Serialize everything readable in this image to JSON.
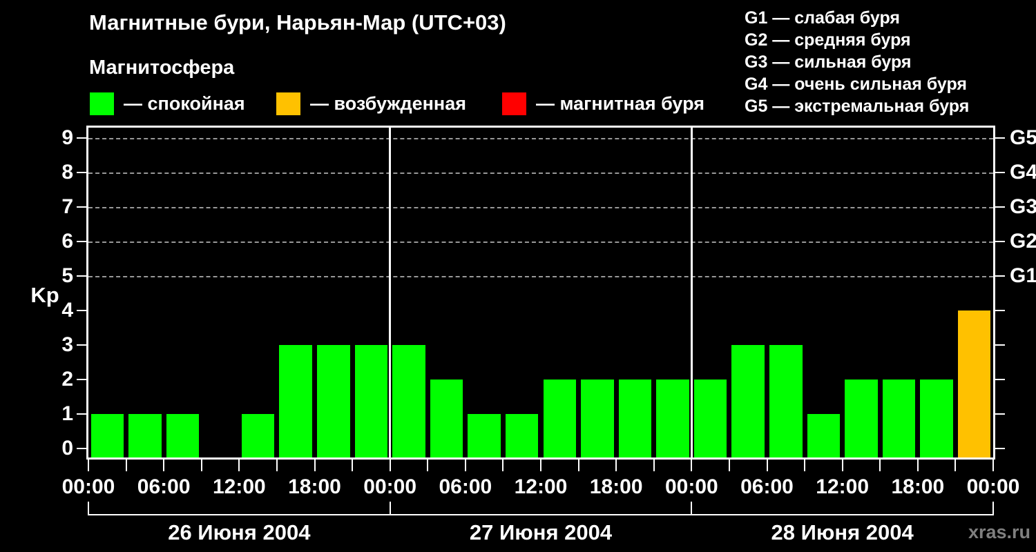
{
  "title": "Магнитные бури, Нарьян-Мар (UTC+03)",
  "subtitle": "Магнитосфера",
  "watermark": "xras.ru",
  "colors": {
    "background": "#000000",
    "text": "#ffffff",
    "axis": "#ffffff",
    "grid": "#999999",
    "watermark": "#7f7f7f",
    "quiet": "#00ff00",
    "excited": "#ffc100",
    "storm": "#ff0000"
  },
  "legend": [
    {
      "key": "quiet",
      "label": "— спокойная"
    },
    {
      "key": "excited",
      "label": "— возбужденная"
    },
    {
      "key": "storm",
      "label": "— магнитная буря"
    }
  ],
  "storm_scale": [
    {
      "code": "G1",
      "name": "слабая буря",
      "kp": 5
    },
    {
      "code": "G2",
      "name": "средняя буря",
      "kp": 6
    },
    {
      "code": "G3",
      "name": "сильная буря",
      "kp": 7
    },
    {
      "code": "G4",
      "name": "очень сильная буря",
      "kp": 8
    },
    {
      "code": "G5",
      "name": "экстремальная буря",
      "kp": 9
    }
  ],
  "chart_data": {
    "type": "bar",
    "ylabel": "Kp",
    "ylim": [
      0,
      9.5
    ],
    "yticks": [
      0,
      1,
      2,
      3,
      4,
      5,
      6,
      7,
      8,
      9
    ],
    "grid_levels": [
      5,
      6,
      7,
      8,
      9
    ],
    "hours_per_bar": 3,
    "x_tick_labels": [
      "00:00",
      "06:00",
      "12:00",
      "18:00",
      "00:00",
      "06:00",
      "12:00",
      "18:00",
      "00:00",
      "06:00",
      "12:00",
      "18:00",
      "00:00"
    ],
    "days": [
      {
        "date": "26 Июня 2004",
        "values": [
          1,
          1,
          1,
          0,
          1,
          3,
          3,
          3
        ]
      },
      {
        "date": "27 Июня 2004",
        "values": [
          3,
          2,
          1,
          1,
          2,
          2,
          2,
          2
        ]
      },
      {
        "date": "28 Июня 2004",
        "values": [
          2,
          3,
          3,
          1,
          2,
          2,
          2,
          4
        ]
      }
    ],
    "color_rule": {
      "quiet_max_kp": 3,
      "excited_kp": 4,
      "storm_min_kp": 5
    },
    "legend_position": "top",
    "grid": "dashed horizontal at G-levels only"
  }
}
